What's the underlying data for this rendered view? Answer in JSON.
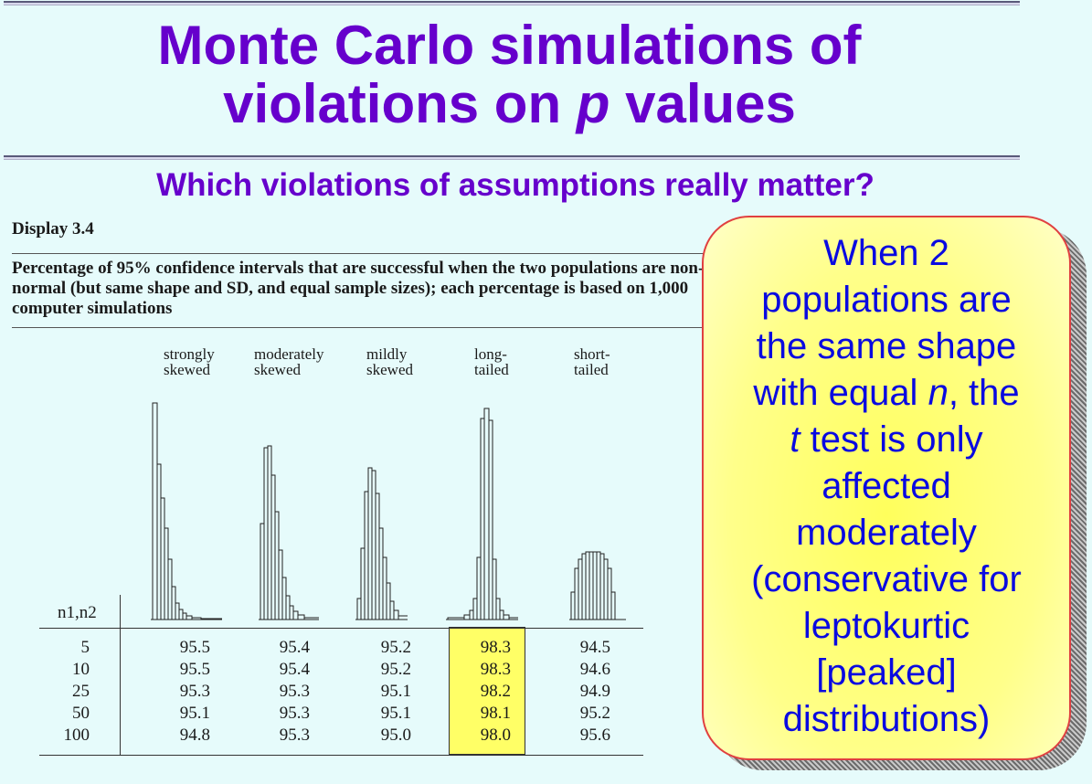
{
  "slide": {
    "title_line1": "Monte Carlo simulations of",
    "title_line2_pre": "violations on ",
    "title_line2_italic": "p",
    "title_line2_post": " values",
    "subtitle": "Which violations of assumptions really matter?"
  },
  "display": {
    "label": "Display 3.4",
    "caption": "Percentage of 95% confidence intervals that are successful when the two populations are non-normal (but same shape and SD, and equal sample sizes); each percentage is based on 1,000 computer simulations",
    "row_header": "n1,n2",
    "columns": [
      {
        "line1": "strongly",
        "line2": "skewed"
      },
      {
        "line1": "moderately",
        "line2": "skewed"
      },
      {
        "line1": "mildly",
        "line2": "skewed"
      },
      {
        "line1": "long-",
        "line2": "tailed"
      },
      {
        "line1": "short-",
        "line2": "tailed"
      }
    ],
    "sample_sizes": [
      "5",
      "10",
      "25",
      "50",
      "100"
    ],
    "values": [
      [
        "95.5",
        "95.4",
        "95.2",
        "98.3",
        "94.5"
      ],
      [
        "95.5",
        "95.4",
        "95.2",
        "98.3",
        "94.6"
      ],
      [
        "95.3",
        "95.3",
        "95.1",
        "98.2",
        "94.9"
      ],
      [
        "95.1",
        "95.3",
        "95.1",
        "98.1",
        "95.2"
      ],
      [
        "94.8",
        "95.3",
        "95.0",
        "98.0",
        "95.6"
      ]
    ],
    "highlight_color": "#ffff66"
  },
  "callout": {
    "l1": "When 2",
    "l2": "populations are",
    "l3": "the same shape",
    "l4_pre": "with equal ",
    "l4_italic": "n",
    "l4_post": ", the",
    "l5_italic": "t",
    "l5_post": " test is only",
    "l6": "affected",
    "l7": "moderately",
    "l8": "(conservative for",
    "l9": "leptokurtic",
    "l10": "[peaked]",
    "l11": "distributions)"
  }
}
